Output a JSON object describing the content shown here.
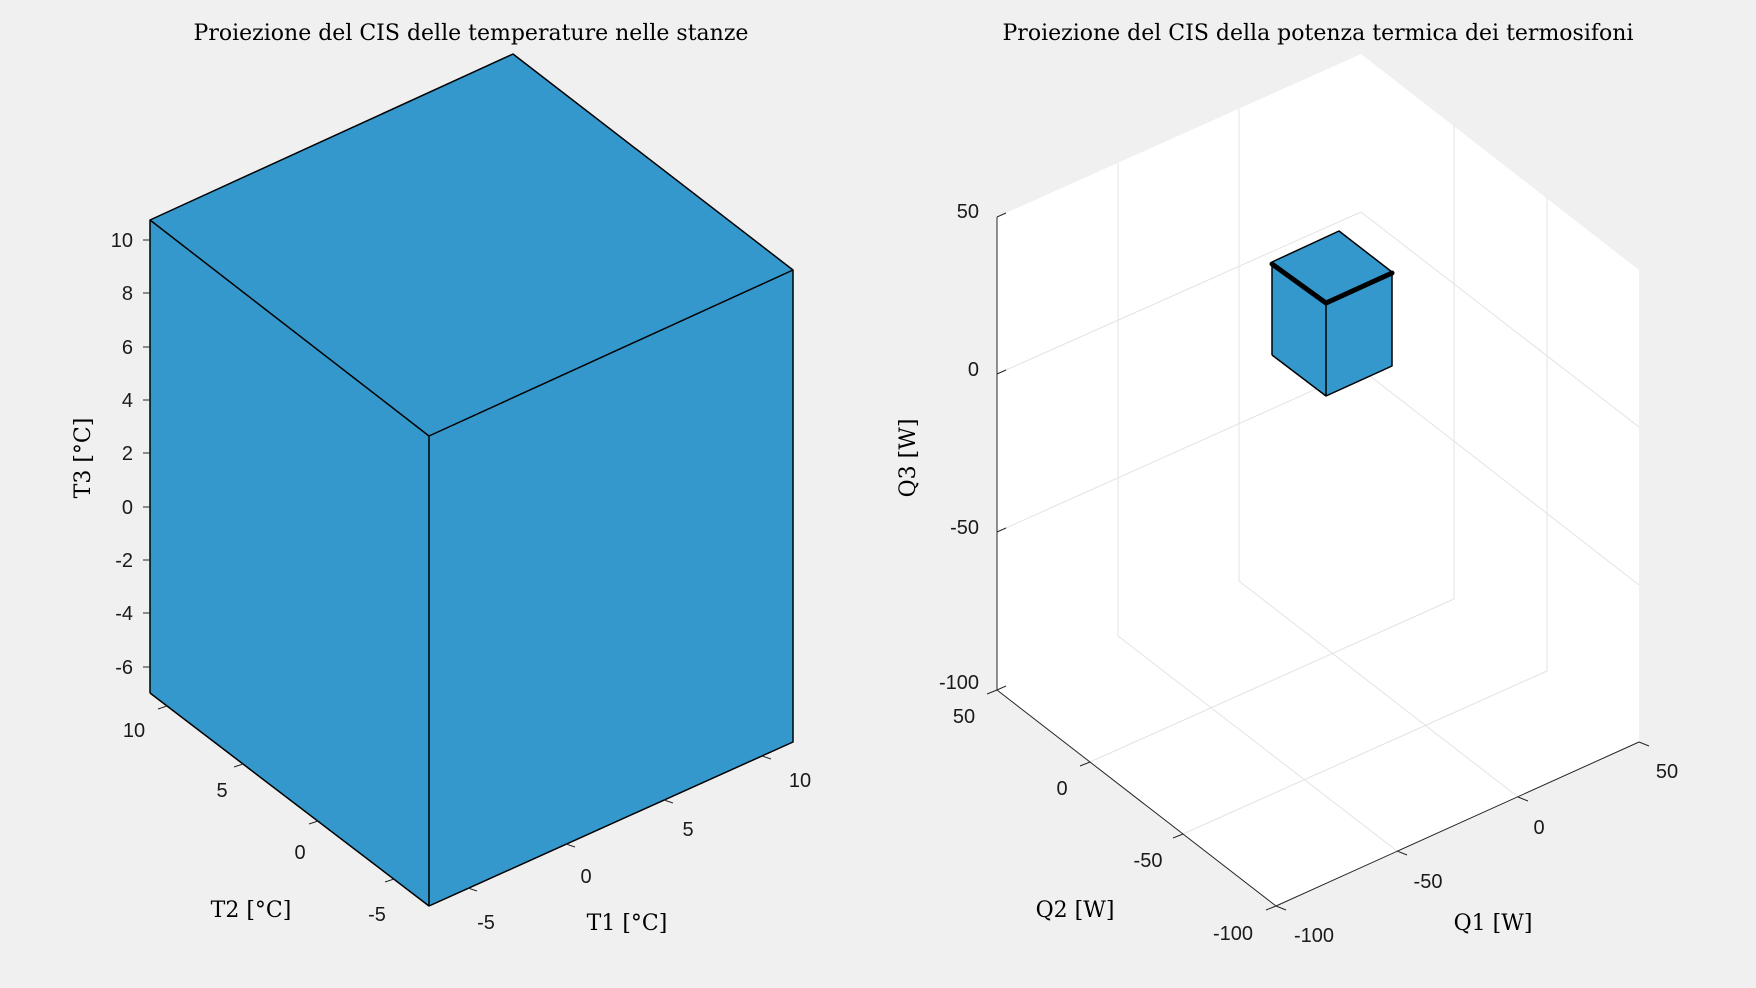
{
  "chart_data": [
    {
      "type": "3d-box",
      "title": "Proiezione del CIS delle temperature nelle stanze",
      "xlabel": "T1 [°C]",
      "ylabel": "T2 [°C]",
      "zlabel": "T3 [°C]",
      "xticks": [
        "-5",
        "0",
        "5",
        "10"
      ],
      "yticks": [
        "-5",
        "0",
        "5",
        "10"
      ],
      "zticks": [
        "-6",
        "-4",
        "-2",
        "0",
        "2",
        "4",
        "6",
        "8",
        "10"
      ],
      "xlim": [
        -7.3,
        11.3
      ],
      "ylim": [
        -7.3,
        11.3
      ],
      "zlim": [
        -7.0,
        10.8
      ],
      "grid": false,
      "box": {
        "x": [
          -7.3,
          11.3
        ],
        "y": [
          -7.3,
          11.3
        ],
        "z": [
          -7.0,
          10.8
        ]
      },
      "face_color": "#3498cc"
    },
    {
      "type": "3d-box",
      "title": "Proiezione del CIS della potenza termica dei termosifoni",
      "xlabel": "Q1 [W]",
      "ylabel": "Q2 [W]",
      "zlabel": "Q3 [W]",
      "xticks": [
        "-100",
        "-50",
        "0",
        "50"
      ],
      "yticks": [
        "-100",
        "-50",
        "0",
        "50"
      ],
      "zticks": [
        "-100",
        "-50",
        "0",
        "50"
      ],
      "xlim": [
        -100,
        50
      ],
      "ylim": [
        -100,
        50
      ],
      "zlim": [
        -100,
        50
      ],
      "grid": true,
      "box": {
        "x": [
          -5,
          50
        ],
        "y": [
          0,
          50
        ],
        "z": [
          -7,
          23
        ]
      },
      "face_color": "#3498cc"
    }
  ]
}
